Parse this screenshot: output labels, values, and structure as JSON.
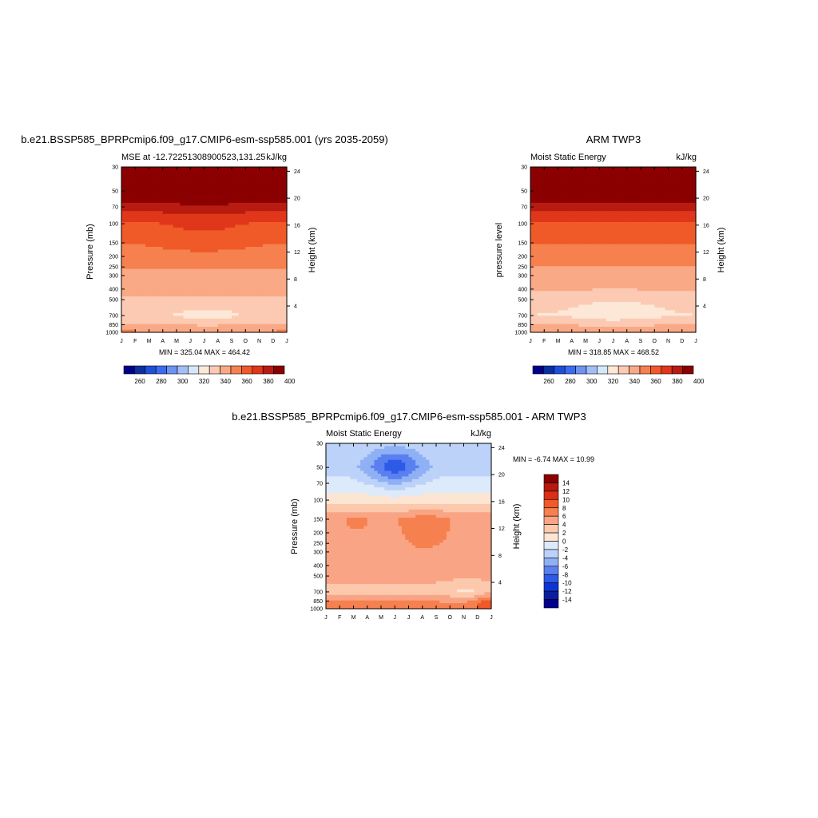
{
  "chart_data": [
    {
      "type": "heatmap",
      "title": "b.e21.BSSP585_BPRPcmip6.f09_g17.CMIP6-esm-ssp585.001 (yrs 2035-2059)",
      "subtitle_left": "MSE at -12.72251308900523,131.25",
      "units": "kJ/kg",
      "xlabel": "",
      "ylabel": "Pressure (mb)",
      "ylabel_right": "Height (km)",
      "x_ticks": [
        "J",
        "F",
        "M",
        "A",
        "M",
        "J",
        "J",
        "A",
        "S",
        "O",
        "N",
        "D",
        "J"
      ],
      "y_ticks": [
        "30",
        "50",
        "70",
        "100",
        "150",
        "200",
        "250",
        "300",
        "400",
        "500",
        "700",
        "850",
        "1000"
      ],
      "y_right_ticks": [
        "24",
        "20",
        "16",
        "12",
        "8",
        "4"
      ],
      "stats": "MIN = 325.04 MAX = 464.42",
      "colorbar_labels": [
        "260",
        "280",
        "300",
        "320",
        "340",
        "360",
        "380",
        "400"
      ],
      "contour_levels": [
        250,
        260,
        270,
        280,
        290,
        300,
        310,
        320,
        330,
        340,
        350,
        360,
        370,
        380,
        390,
        400,
        410
      ],
      "min": 325.04,
      "max": 464.42,
      "profile_by_level": {
        "pressure_mb": [
          1000,
          850,
          700,
          500,
          400,
          300,
          200,
          150,
          100,
          70,
          50,
          30
        ],
        "mse_kJkg": [
          352,
          341,
          333,
          339,
          343,
          347,
          357,
          362,
          370,
          385,
          410,
          445
        ]
      },
      "feature": "low-MSE minimum near 700 mb, April–September"
    },
    {
      "type": "heatmap",
      "title": "ARM TWP3",
      "subtitle_left": "Moist Static Energy",
      "units": "kJ/kg",
      "xlabel": "",
      "ylabel": "pressure level",
      "ylabel_right": "Height (km)",
      "x_ticks": [
        "J",
        "F",
        "M",
        "A",
        "M",
        "J",
        "J",
        "A",
        "S",
        "O",
        "N",
        "D",
        "J"
      ],
      "y_ticks": [
        "30",
        "50",
        "70",
        "100",
        "150",
        "200",
        "250",
        "300",
        "400",
        "500",
        "700",
        "850",
        "1000"
      ],
      "y_right_ticks": [
        "24",
        "20",
        "16",
        "12",
        "8",
        "4"
      ],
      "stats": "MIN = 318.85 MAX = 468.52",
      "colorbar_labels": [
        "260",
        "280",
        "300",
        "320",
        "340",
        "360",
        "380",
        "400"
      ],
      "contour_levels": [
        250,
        260,
        270,
        280,
        290,
        300,
        310,
        320,
        330,
        340,
        350,
        360,
        370,
        380,
        390,
        400,
        410
      ],
      "min": 318.85,
      "max": 468.52,
      "profile_by_level": {
        "pressure_mb": [
          1000,
          850,
          700,
          500,
          400,
          300,
          200,
          150,
          100,
          70,
          50,
          30
        ],
        "mse_kJkg": [
          350,
          340,
          330,
          335,
          341,
          345,
          355,
          361,
          368,
          384,
          410,
          447
        ]
      },
      "feature": "low-MSE minimum between 700 and 400 mb, March–October"
    },
    {
      "type": "heatmap",
      "title": "b.e21.BSSP585_BPRPcmip6.f09_g17.CMIP6-esm-ssp585.001 - ARM TWP3",
      "subtitle_left": "Moist Static Energy",
      "units": "kJ/kg",
      "xlabel": "",
      "ylabel": "Pressure (mb)",
      "ylabel_right": "Height (km)",
      "x_ticks": [
        "J",
        "F",
        "M",
        "A",
        "M",
        "J",
        "J",
        "A",
        "S",
        "O",
        "N",
        "D",
        "J"
      ],
      "y_ticks": [
        "30",
        "50",
        "70",
        "100",
        "150",
        "200",
        "250",
        "300",
        "400",
        "500",
        "700",
        "850",
        "1000"
      ],
      "y_right_ticks": [
        "24",
        "20",
        "16",
        "12",
        "8",
        "4"
      ],
      "stats": "MIN =  -6.74 MAX =  10.99",
      "colorbar_labels": [
        "14",
        "12",
        "10",
        "8",
        "6",
        "4",
        "2",
        "0",
        "-2",
        "-4",
        "-6",
        "-8",
        "-10",
        "-12",
        "-14"
      ],
      "contour_levels": [
        -15,
        -14,
        -12,
        -10,
        -8,
        -6,
        -4,
        -2,
        0,
        2,
        4,
        6,
        8,
        10,
        12,
        14,
        15
      ],
      "min": -6.74,
      "max": 10.99,
      "profile_by_level": {
        "pressure_mb": [
          1000,
          850,
          700,
          500,
          400,
          300,
          200,
          150,
          100,
          70,
          50,
          30
        ],
        "diff_kJkg": [
          7,
          6,
          3.5,
          4.5,
          5,
          5,
          5,
          5.5,
          1,
          -1,
          -3,
          -2
        ]
      },
      "feature": "negative anomaly above 100 mb strongest near 50 mb in April–July; positive 6–8 core near 150–250 mb in June–August"
    }
  ],
  "colors": {
    "levels_blue_to_red": [
      "#00008b",
      "#0b2ea0",
      "#1f4fd8",
      "#3a6cf0",
      "#6d92f0",
      "#a2bef7",
      "#d6e6fb",
      "#fde8d8",
      "#fccab3",
      "#f9a985",
      "#f6814f",
      "#ef5a28",
      "#e0361a",
      "#b81c10",
      "#8b0000"
    ],
    "diff_levels": [
      "#00008b",
      "#0b1f9e",
      "#0d35d6",
      "#2e5ae8",
      "#5a80f0",
      "#8fb0f5",
      "#bcd2f8",
      "#dceafc",
      "#fde5d3",
      "#fcc9ad",
      "#f9a585",
      "#f6804f",
      "#ef5a28",
      "#d92f15",
      "#b41a0e",
      "#8b0000"
    ]
  }
}
